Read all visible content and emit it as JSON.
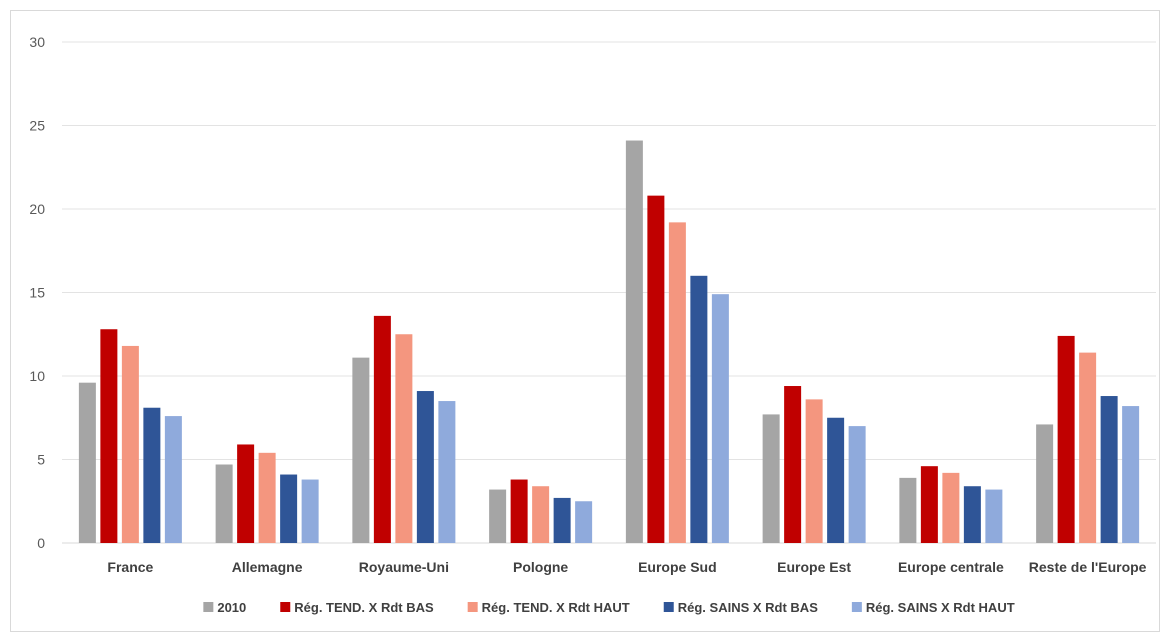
{
  "chart_data": {
    "type": "bar",
    "categories": [
      "France",
      "Allemagne",
      "Royaume-Uni",
      "Pologne",
      "Europe Sud",
      "Europe Est",
      "Europe centrale",
      "Reste de l'Europe"
    ],
    "series": [
      {
        "name": "2010",
        "color": "#a5a5a5",
        "values": [
          9.6,
          4.7,
          11.1,
          3.2,
          24.1,
          7.7,
          3.9,
          7.1
        ]
      },
      {
        "name": "Rég. TEND. X Rdt BAS",
        "color": "#c00000",
        "values": [
          12.8,
          5.9,
          13.6,
          3.8,
          20.8,
          9.4,
          4.6,
          12.4
        ]
      },
      {
        "name": "Rég. TEND. X Rdt HAUT",
        "color": "#f4967f",
        "values": [
          11.8,
          5.4,
          12.5,
          3.4,
          19.2,
          8.6,
          4.2,
          11.4
        ]
      },
      {
        "name": "Rég. SAINS X Rdt BAS",
        "color": "#2f5597",
        "values": [
          8.1,
          4.1,
          9.1,
          2.7,
          16.0,
          7.5,
          3.4,
          8.8
        ]
      },
      {
        "name": "Rég. SAINS X Rdt HAUT",
        "color": "#8faadc",
        "values": [
          7.6,
          3.8,
          8.5,
          2.5,
          14.9,
          7.0,
          3.2,
          8.2
        ]
      }
    ],
    "yticks": [
      "0",
      "5",
      "10",
      "15",
      "20",
      "25",
      "30"
    ],
    "ylim": [
      0,
      30
    ],
    "grid": true,
    "legend_position": "bottom",
    "title": "",
    "xlabel": "",
    "ylabel": ""
  }
}
